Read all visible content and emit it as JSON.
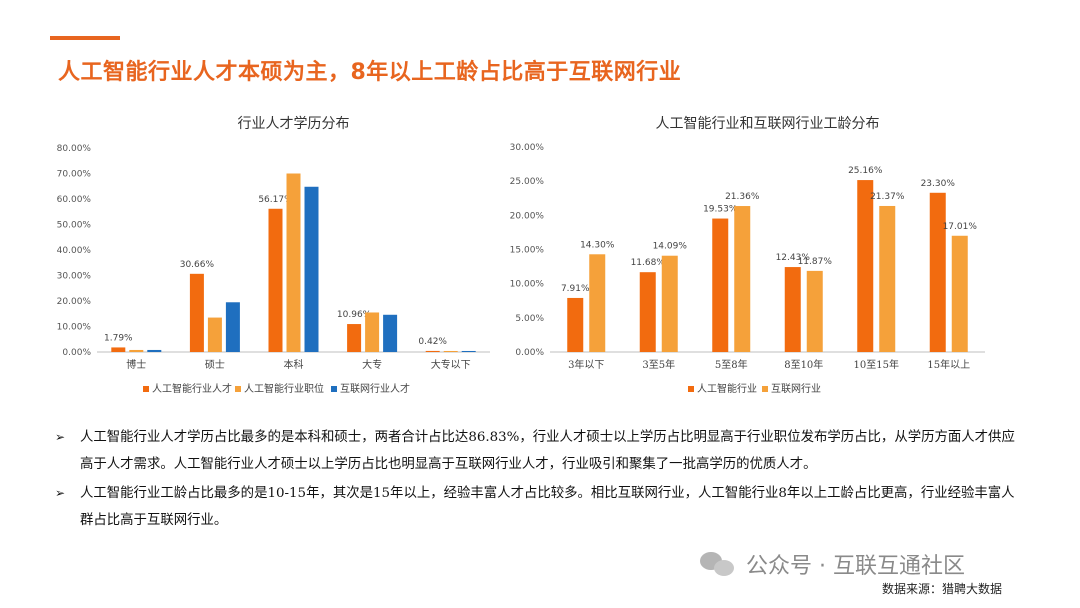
{
  "slide": {
    "title": "人工智能行业人才本硕为主，8年以上工龄占比高于互联网行业",
    "bullets": [
      "人工智能行业人才学历占比最多的是本科和硕士，两者合计占比达86.83%，行业人才硕士以上学历占比明显高于行业职位发布学历占比，从学历方面人才供应高于人才需求。人工智能行业人才硕士以上学历占比也明显高于互联网行业人才，行业吸引和聚集了一批高学历的优质人才。",
      "人工智能行业工龄占比最多的是10-15年，其次是15年以上，经验丰富人才占比较多。相比互联网行业，人工智能行业8年以上工龄占比更高，行业经验丰富人群占比高于互联网行业。"
    ],
    "bullet_marker": "➢",
    "watermark": "公众号 · 互联互通社区",
    "source": "数据来源：猎聘大数据",
    "colors": {
      "accent": "#E8651F",
      "orange_dark": "#F26B0F",
      "orange_light": "#F5A13A",
      "blue": "#1F6FBF"
    }
  },
  "chart_data": [
    {
      "type": "bar",
      "title": "行业人才学历分布",
      "categories": [
        "博士",
        "硕士",
        "本科",
        "大专",
        "大专以下"
      ],
      "yticks": [
        "0.00%",
        "10.00%",
        "20.00%",
        "30.00%",
        "40.00%",
        "50.00%",
        "60.00%",
        "70.00%",
        "80.00%"
      ],
      "ylim": [
        0,
        80
      ],
      "series": [
        {
          "name": "人工智能行业人才",
          "color": "#F26B0F",
          "values": [
            1.79,
            30.66,
            56.17,
            10.96,
            0.42
          ],
          "labels": [
            "1.79%",
            "30.66%",
            "56.17%",
            "10.96%",
            "0.42%"
          ]
        },
        {
          "name": "人工智能行业职位",
          "color": "#F5A13A",
          "values": [
            0.8,
            13.5,
            70.0,
            15.5,
            0.4
          ],
          "labels": [
            "",
            "",
            "",
            "",
            ""
          ]
        },
        {
          "name": "互联网行业人才",
          "color": "#1F6FBF",
          "values": [
            0.8,
            19.5,
            64.8,
            14.6,
            0.4
          ],
          "labels": [
            "",
            "",
            "",
            "",
            ""
          ]
        }
      ],
      "legend_position": "bottom",
      "grid": false
    },
    {
      "type": "bar",
      "title": "人工智能行业和互联网行业工龄分布",
      "categories": [
        "3年以下",
        "3至5年",
        "5至8年",
        "8至10年",
        "10至15年",
        "15年以上"
      ],
      "yticks": [
        "0.00%",
        "5.00%",
        "10.00%",
        "15.00%",
        "20.00%",
        "25.00%",
        "30.00%"
      ],
      "ylim": [
        0,
        30
      ],
      "series": [
        {
          "name": "人工智能行业",
          "color": "#F26B0F",
          "values": [
            7.91,
            11.68,
            19.53,
            12.43,
            25.16,
            23.3
          ],
          "labels": [
            "7.91%",
            "11.68%",
            "19.53%",
            "12.43%",
            "25.16%",
            "23.30%"
          ]
        },
        {
          "name": "互联网行业",
          "color": "#F5A13A",
          "values": [
            14.3,
            14.09,
            21.36,
            11.87,
            21.37,
            17.01
          ],
          "labels": [
            "14.30%",
            "14.09%",
            "21.36%",
            "11.87%",
            "21.37%",
            "17.01%"
          ]
        }
      ],
      "legend_position": "bottom",
      "grid": false
    }
  ]
}
